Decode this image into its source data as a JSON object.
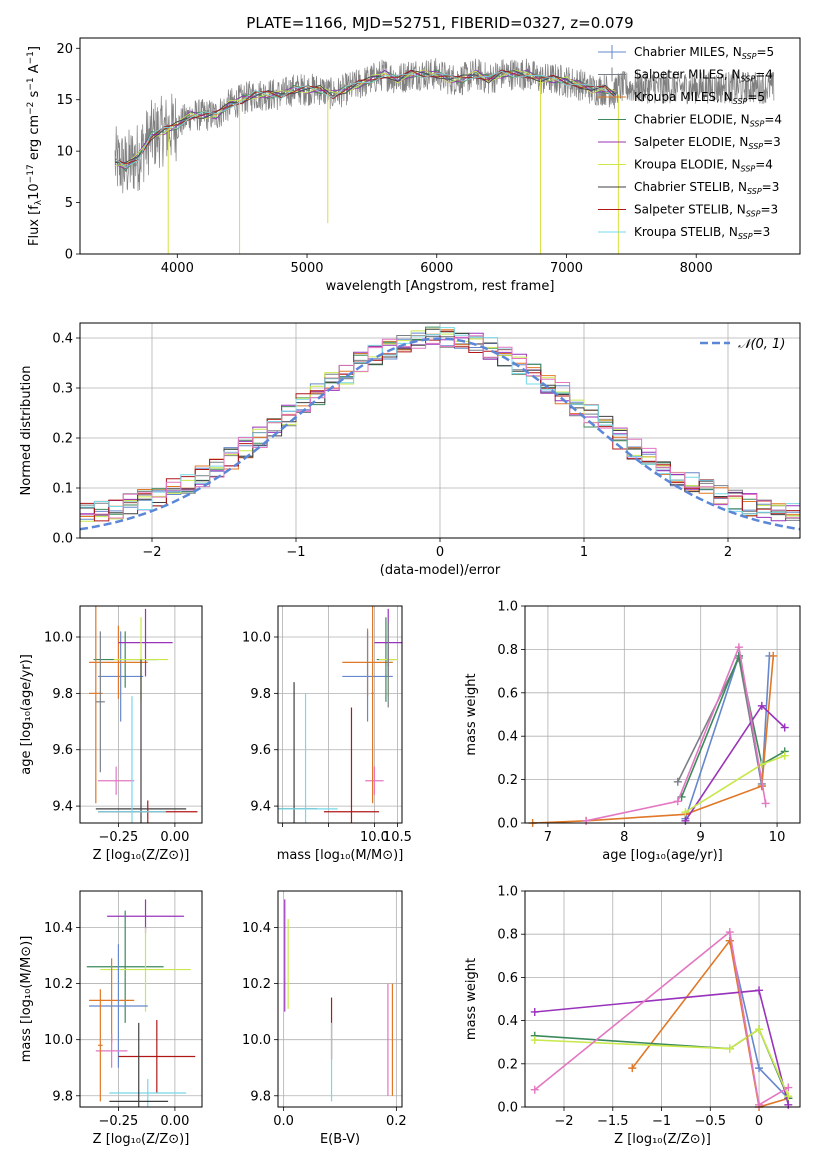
{
  "figure": {
    "title": "PLATE=1166, MJD=52751, FIBERID=0327, z=0.079"
  },
  "legend_models": [
    {
      "label": "Chabrier MILES, N",
      "sub": "SSP",
      "suffix": "=5",
      "color": "#6688cc"
    },
    {
      "label": "Salpeter MILES, N",
      "sub": "SSP",
      "suffix": "=4",
      "color": "#7a8088"
    },
    {
      "label": "Kroupa MILES, N",
      "sub": "SSP",
      "suffix": "=5",
      "color": "#e07828"
    },
    {
      "label": "Chabrier ELODIE, N",
      "sub": "SSP",
      "suffix": "=4",
      "color": "#3c8a5c"
    },
    {
      "label": "Salpeter ELODIE, N",
      "sub": "SSP",
      "suffix": "=3",
      "color": "#9933bb"
    },
    {
      "label": "Kroupa ELODIE, N",
      "sub": "SSP",
      "suffix": "=4",
      "color": "#c8e84c"
    },
    {
      "label": "Chabrier STELIB, N",
      "sub": "SSP",
      "suffix": "=3",
      "color": "#404040"
    },
    {
      "label": "Salpeter STELIB, N",
      "sub": "SSP",
      "suffix": "=3",
      "color": "#b01818"
    },
    {
      "label": "Kroupa STELIB, N",
      "sub": "SSP",
      "suffix": "=3",
      "color": "#77d8e8"
    }
  ],
  "colors": {
    "pink": "#e377c2",
    "obs": "#808080",
    "gauss": "#5b87d8",
    "grid": "#b0b0b0"
  },
  "chart_data": [
    {
      "id": "spectrum",
      "type": "line",
      "xlabel": "wavelength [Angstrom, rest frame]",
      "ylabel_pre": "Flux [f",
      "ylabel_mid": "10",
      "ylabel_post": " erg cm",
      "ylabel_end": " s",
      "ylabel_tail": " A",
      "xlim": [
        3250,
        8800
      ],
      "ylim": [
        0,
        21
      ],
      "xticks": [
        4000,
        5000,
        6000,
        7000,
        8000
      ],
      "yticks": [
        0,
        5,
        10,
        15,
        20
      ],
      "continuum": [
        [
          3520,
          9.0
        ],
        [
          3600,
          8.5
        ],
        [
          3700,
          9.5
        ],
        [
          3800,
          11.5
        ],
        [
          3900,
          12.0
        ],
        [
          4000,
          12.5
        ],
        [
          4100,
          13.5
        ],
        [
          4200,
          13.5
        ],
        [
          4300,
          13.5
        ],
        [
          4400,
          14.5
        ],
        [
          4500,
          15.0
        ],
        [
          4600,
          15.5
        ],
        [
          4700,
          15.5
        ],
        [
          4800,
          15.5
        ],
        [
          4900,
          16.0
        ],
        [
          5000,
          16.0
        ],
        [
          5100,
          16.0
        ],
        [
          5200,
          15.5
        ],
        [
          5300,
          16.0
        ],
        [
          5400,
          16.5
        ],
        [
          5500,
          17.0
        ],
        [
          5600,
          17.5
        ],
        [
          5700,
          17.0
        ],
        [
          5800,
          17.5
        ],
        [
          5900,
          17.5
        ],
        [
          6000,
          17.5
        ],
        [
          6100,
          17.0
        ],
        [
          6200,
          17.0
        ],
        [
          6300,
          17.5
        ],
        [
          6400,
          17.0
        ],
        [
          6500,
          17.5
        ],
        [
          6600,
          17.5
        ],
        [
          6700,
          17.5
        ],
        [
          6800,
          17.0
        ],
        [
          6900,
          17.0
        ],
        [
          7000,
          16.8
        ],
        [
          7100,
          16.5
        ],
        [
          7200,
          16.0
        ],
        [
          7300,
          16.0
        ],
        [
          7380,
          15.5
        ]
      ],
      "observed_extension": [
        [
          7380,
          15.5
        ],
        [
          7500,
          16.5
        ],
        [
          7700,
          16.8
        ],
        [
          8000,
          16.5
        ],
        [
          8200,
          16.2
        ],
        [
          8400,
          16.0
        ],
        [
          8600,
          16.0
        ]
      ],
      "drops": [
        {
          "x": 3930,
          "to": 0
        },
        {
          "x": 4480,
          "to": 0
        },
        {
          "x": 6800,
          "to": 0
        },
        {
          "x": 7400,
          "to": 0
        },
        {
          "x": 5160,
          "to": 3
        }
      ]
    },
    {
      "id": "residuals",
      "type": "histogram",
      "xlabel": "(data-model)/error",
      "ylabel": "Normed distribution",
      "xlim": [
        -2.5,
        2.5
      ],
      "ylim": [
        0,
        0.43
      ],
      "xticks": [
        -2,
        -1,
        0,
        1,
        2
      ],
      "yticks": [
        0.0,
        0.1,
        0.2,
        0.3,
        0.4
      ],
      "bin_width": 0.1,
      "legend": "𝒩(0, 1)",
      "gaussian": {
        "mu": 0,
        "sigma": 1
      }
    },
    {
      "id": "age_vs_Z",
      "type": "errorbar",
      "xlabel": "Z [log₁₀(Z/Z⊙)]",
      "ylabel": "age  [log₁₀(age/yr)]",
      "xlim": [
        -0.42,
        0.12
      ],
      "ylim": [
        9.34,
        10.11
      ],
      "xticks": [
        -0.25,
        0.0
      ],
      "xticklabels": [
        "−0.25",
        "0.00"
      ],
      "yticks": [
        9.4,
        9.6,
        9.8,
        10.0
      ],
      "points": [
        {
          "x": -0.24,
          "xe": 0.1,
          "y": 9.86,
          "ye": 0.16,
          "c": 0
        },
        {
          "x": -0.22,
          "xe": 0.14,
          "y": 9.92,
          "ye": 0.1,
          "c": 3
        },
        {
          "x": -0.25,
          "xe": 0.13,
          "y": 9.91,
          "ye": 0.13,
          "c": 2
        },
        {
          "x": -0.13,
          "xe": 0.12,
          "y": 9.98,
          "ye": 0.12,
          "c": 4
        },
        {
          "x": -0.15,
          "xe": 0.12,
          "y": 9.92,
          "ye": 0.15,
          "c": 5
        },
        {
          "x": -0.26,
          "xe": 0.08,
          "y": 9.49,
          "ye": 0.05,
          "c": 9
        },
        {
          "x": -0.15,
          "xe": 0.2,
          "y": 9.39,
          "ye": 0.53,
          "c": 6
        },
        {
          "x": -0.12,
          "xe": 0.22,
          "y": 9.38,
          "ye": 0.04,
          "c": 7
        },
        {
          "x": -0.19,
          "xe": 0.15,
          "y": 9.38,
          "ye": 0.41,
          "c": 8
        },
        {
          "x": -0.35,
          "xe": 0.03,
          "y": 9.8,
          "ye": 0.39,
          "c": 2
        },
        {
          "x": -0.33,
          "xe": 0.02,
          "y": 9.77,
          "ye": 0.25,
          "c": 1
        }
      ]
    },
    {
      "id": "age_vs_mass",
      "type": "errorbar",
      "xlabel": "mass [log₁₀(M/M⊙)]",
      "xlim": [
        7.9,
        10.6
      ],
      "ylim": [
        9.34,
        10.11
      ],
      "xticks": [
        8.0,
        9.0,
        10.0,
        10.5
      ],
      "xticklabels": [
        "",
        "",
        "10.0",
        "10.5"
      ],
      "yticks": [
        9.4,
        9.6,
        9.8,
        10.0
      ],
      "points": [
        {
          "x": 9.85,
          "xe": 0.55,
          "y": 9.91,
          "ye": 0.12,
          "c": 2
        },
        {
          "x": 9.85,
          "xe": 0.55,
          "y": 9.86,
          "ye": 0.16,
          "c": 0
        },
        {
          "x": 10.25,
          "xe": 0.2,
          "y": 9.92,
          "ye": 0.15,
          "c": 3
        },
        {
          "x": 10.3,
          "xe": 0.2,
          "y": 9.92,
          "ye": 0.13,
          "c": 5
        },
        {
          "x": 10.3,
          "xe": 0.3,
          "y": 9.98,
          "ye": 0.12,
          "c": 4
        },
        {
          "x": 10.0,
          "xe": 0.2,
          "y": 9.49,
          "ye": 0.05,
          "c": 9
        },
        {
          "x": 8.25,
          "xe": 0.5,
          "y": 9.39,
          "ye": 0.45,
          "c": 6
        },
        {
          "x": 9.5,
          "xe": 0.6,
          "y": 9.38,
          "ye": 0.37,
          "c": 7
        },
        {
          "x": 8.5,
          "xe": 0.7,
          "y": 9.39,
          "ye": 0.41,
          "c": 8
        },
        {
          "x": 9.96,
          "xe": 0.03,
          "y": 9.8,
          "ye": 0.39,
          "c": 2
        },
        {
          "x": 10.3,
          "xe": 0.02,
          "y": 9.9,
          "ye": 0.15,
          "c": 1
        }
      ]
    },
    {
      "id": "mass_weight_vs_age",
      "type": "line",
      "xlabel": "age  [log₁₀(age/yr)]",
      "ylabel": "mass weight",
      "xlim": [
        6.7,
        10.3
      ],
      "ylim": [
        0,
        1.0
      ],
      "xticks": [
        7,
        8,
        9,
        10
      ],
      "yticks": [
        0.0,
        0.2,
        0.4,
        0.6,
        0.8,
        1.0
      ],
      "series": [
        {
          "c": 0,
          "pts": [
            [
              8.8,
              0.02
            ],
            [
              9.5,
              0.77
            ],
            [
              9.8,
              0.17
            ],
            [
              9.9,
              0.77
            ]
          ]
        },
        {
          "c": 1,
          "pts": [
            [
              8.7,
              0.19
            ],
            [
              9.5,
              0.76
            ],
            [
              9.8,
              0.18
            ]
          ]
        },
        {
          "c": 2,
          "pts": [
            [
              6.8,
              0.0
            ],
            [
              7.5,
              0.01
            ],
            [
              8.8,
              0.04
            ],
            [
              9.8,
              0.17
            ],
            [
              9.95,
              0.77
            ]
          ]
        },
        {
          "c": 3,
          "pts": [
            [
              8.75,
              0.12
            ],
            [
              9.5,
              0.77
            ],
            [
              9.8,
              0.27
            ],
            [
              10.1,
              0.33
            ]
          ]
        },
        {
          "c": 4,
          "pts": [
            [
              8.8,
              0.01
            ],
            [
              9.8,
              0.54
            ],
            [
              10.1,
              0.44
            ]
          ]
        },
        {
          "c": 5,
          "pts": [
            [
              8.8,
              0.05
            ],
            [
              9.8,
              0.27
            ],
            [
              10.1,
              0.31
            ]
          ]
        },
        {
          "c": 9,
          "pts": [
            [
              7.5,
              0.01
            ],
            [
              8.7,
              0.1
            ],
            [
              9.5,
              0.81
            ],
            [
              9.85,
              0.09
            ]
          ]
        }
      ]
    },
    {
      "id": "mass_vs_Z",
      "type": "errorbar",
      "xlabel": "Z [log₁₀(Z/Z⊙)]",
      "ylabel": "mass [log₁₀(M/M⊙)]",
      "xlim": [
        -0.42,
        0.12
      ],
      "ylim": [
        9.76,
        10.53
      ],
      "xticks": [
        -0.25,
        0.0
      ],
      "xticklabels": [
        "−0.25",
        "0.00"
      ],
      "yticks": [
        9.8,
        10.0,
        10.2,
        10.4
      ],
      "points": [
        {
          "x": -0.13,
          "xe": 0.17,
          "y": 10.44,
          "ye": 0.06,
          "c": 4
        },
        {
          "x": -0.22,
          "xe": 0.17,
          "y": 10.26,
          "ye": 0.2,
          "c": 3
        },
        {
          "x": -0.13,
          "xe": 0.2,
          "y": 10.25,
          "ye": 0.15,
          "c": 5
        },
        {
          "x": -0.28,
          "xe": 0.1,
          "y": 10.14,
          "ye": 0.15,
          "c": 2
        },
        {
          "x": -0.25,
          "xe": 0.13,
          "y": 10.12,
          "ye": 0.22,
          "c": 0
        },
        {
          "x": -0.08,
          "xe": 0.17,
          "y": 9.94,
          "ye": 0.13,
          "c": 7
        },
        {
          "x": -0.28,
          "xe": 0.07,
          "y": 9.96,
          "ye": 0.06,
          "c": 9
        },
        {
          "x": -0.12,
          "xe": 0.17,
          "y": 9.81,
          "ye": 0.05,
          "c": 8
        },
        {
          "x": -0.16,
          "xe": 0.13,
          "y": 9.78,
          "ye": 0.28,
          "c": 6
        },
        {
          "x": -0.33,
          "xe": 0.01,
          "y": 9.98,
          "ye": 0.2,
          "c": 2
        }
      ]
    },
    {
      "id": "mass_vs_EBV",
      "type": "errorbar",
      "xlabel": "E(B-V)",
      "xlim": [
        -0.01,
        0.21
      ],
      "ylim": [
        9.76,
        10.53
      ],
      "xticks": [
        0.0,
        0.2
      ],
      "xticklabels": [
        "0.0",
        "0.2"
      ],
      "yticks": [
        9.8,
        10.0,
        10.2,
        10.4
      ],
      "points": [
        {
          "x": 0.002,
          "y": 10.3,
          "ye": 0.2,
          "c": 4
        },
        {
          "x": 0.008,
          "y": 10.27,
          "ye": 0.16,
          "c": 5
        },
        {
          "x": 0.085,
          "y": 10.04,
          "ye": 0.11,
          "c": 7
        },
        {
          "x": 0.085,
          "y": 9.92,
          "ye": 0.14,
          "c": 8
        },
        {
          "x": 0.185,
          "y": 10.0,
          "ye": 0.2,
          "c": 9
        },
        {
          "x": 0.193,
          "y": 10.0,
          "ye": 0.2,
          "c": 2
        }
      ]
    },
    {
      "id": "mass_weight_vs_Z",
      "type": "line",
      "xlabel": "Z [log₁₀(Z/Z⊙)]",
      "ylabel": "mass weight",
      "xlim": [
        -2.4,
        0.42
      ],
      "ylim": [
        0,
        1.0
      ],
      "xticks": [
        -2.0,
        -1.5,
        -1.0,
        -0.5,
        0.0
      ],
      "yticks": [
        0.0,
        0.2,
        0.4,
        0.6,
        0.8,
        1.0
      ],
      "series": [
        {
          "c": 0,
          "pts": [
            [
              -0.3,
              0.77
            ],
            [
              0.0,
              0.18
            ],
            [
              0.3,
              0.04
            ]
          ]
        },
        {
          "c": 2,
          "pts": [
            [
              -1.3,
              0.18
            ],
            [
              -0.3,
              0.77
            ],
            [
              0.0,
              0.0
            ],
            [
              0.3,
              0.04
            ]
          ]
        },
        {
          "c": 3,
          "pts": [
            [
              -2.3,
              0.33
            ],
            [
              -0.3,
              0.27
            ],
            [
              0.0,
              0.36
            ],
            [
              0.3,
              0.04
            ]
          ]
        },
        {
          "c": 4,
          "pts": [
            [
              -2.3,
              0.44
            ],
            [
              0.0,
              0.54
            ],
            [
              0.3,
              0.01
            ]
          ]
        },
        {
          "c": 5,
          "pts": [
            [
              -2.3,
              0.31
            ],
            [
              -0.3,
              0.27
            ],
            [
              0.0,
              0.36
            ],
            [
              0.3,
              0.05
            ]
          ]
        },
        {
          "c": 9,
          "pts": [
            [
              -2.3,
              0.08
            ],
            [
              -0.3,
              0.81
            ],
            [
              0.0,
              0.01
            ],
            [
              0.3,
              0.09
            ]
          ]
        }
      ]
    }
  ]
}
